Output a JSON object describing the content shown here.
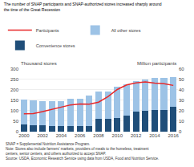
{
  "chart_data": {
    "type": "bar",
    "stacked": true,
    "title": "The number of SNAP participants and SNAP-authorized stores increased sharply around\nthe time of the Great Recession",
    "ylabel": "Thousand stores",
    "y2label": "Million participants",
    "categories": [
      "2000",
      null,
      "2002",
      null,
      "2004",
      null,
      "2006",
      null,
      "2008",
      null,
      "2010",
      null,
      "2012",
      null,
      "2014",
      null,
      "2016"
    ],
    "series": [
      {
        "name": "Convenience stores",
        "color": "#1f4e79",
        "values": [
          35,
          30,
          30,
          27,
          27,
          27,
          27,
          27,
          60,
          63,
          67,
          77,
          95,
          100,
          103,
          104,
          117
        ]
      },
      {
        "name": "All other stores",
        "color": "#9dc3e6",
        "values": [
          118,
          118,
          115,
          117,
          118,
          130,
          130,
          145,
          130,
          130,
          148,
          148,
          148,
          148,
          153,
          153,
          143
        ]
      },
      {
        "name": "Participants",
        "type": "line",
        "axis": "y2",
        "color": "#e8292a",
        "values": [
          17,
          17.3,
          19.1,
          21.2,
          23.8,
          25.6,
          26.5,
          26.3,
          28.2,
          33.5,
          40.3,
          44.7,
          46.6,
          47.6,
          46.5,
          45.8,
          44.2
        ]
      }
    ],
    "ylim": [
      0,
      300
    ],
    "yticks": [
      0,
      50,
      100,
      150,
      200,
      250,
      300
    ],
    "y2lim": [
      0,
      60
    ],
    "y2ticks": [
      0,
      10,
      20,
      30,
      40,
      50,
      60
    ],
    "grid": true,
    "legend": "top",
    "annotations": [
      "SNAP = Supplemental Nutrition Assistance Program.\nNote: Stores also include farmers' markets, providers of meals to the homeless, treatment\ncenters, senior centers, and others authorized to accept SNAP.\nSource: USDA, Economic Research Service using data from USDA, Food and Nutrition Service."
    ]
  }
}
